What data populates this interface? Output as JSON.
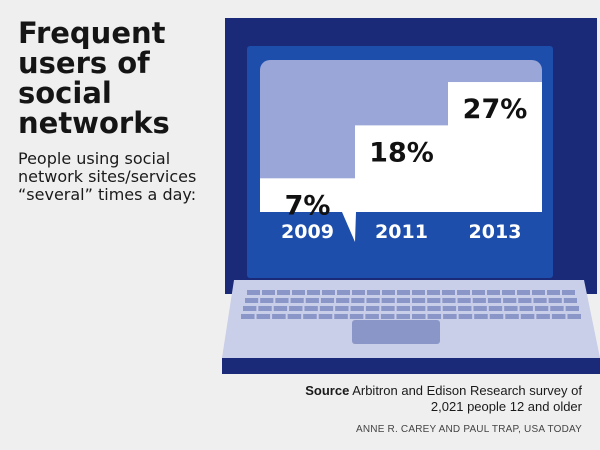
{
  "header": {
    "title": "Frequent users of social networks",
    "subtitle": "People using social network sites/services “several” times a day:"
  },
  "colors": {
    "laptop_navy": "#1b2a78",
    "screen_blue": "#1d4eab",
    "bubble_bg": "#99a6d7",
    "bubble_fill": "#ffffff",
    "keyboard": "#c9cee9",
    "keys": "#8b96c8"
  },
  "chart_data": {
    "type": "bar",
    "categories": [
      "2009",
      "2011",
      "2013"
    ],
    "values": [
      7,
      18,
      27
    ],
    "value_labels": [
      "7%",
      "18%",
      "27%"
    ],
    "unit": "%",
    "ylim": [
      0,
      30
    ],
    "title": "Frequent users of social networks",
    "xlabel": "",
    "ylabel": ""
  },
  "footer": {
    "source_label": "Source",
    "source_text": " Arbitron and Edison Research survey of 2,021 people 12 and older",
    "credit": "ANNE R. CAREY AND PAUL TRAP, USA TODAY"
  }
}
